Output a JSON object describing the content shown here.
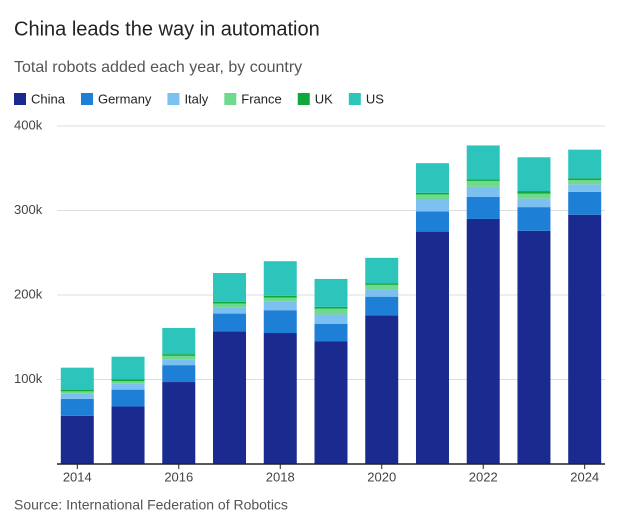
{
  "chart_data": {
    "type": "bar",
    "stacked": true,
    "title": "China leads the way in automation",
    "subtitle": "Total robots added each year, by country",
    "source": "Source: International Federation of Robotics",
    "x": [
      2014,
      2015,
      2016,
      2017,
      2018,
      2019,
      2020,
      2021,
      2022,
      2023,
      2024
    ],
    "xlim": [
      2013.6,
      2024.4
    ],
    "xticks": [
      2014,
      2016,
      2018,
      2020,
      2022,
      2024
    ],
    "ylim": [
      0,
      400000
    ],
    "yticks": [
      {
        "value": 100000,
        "label": "100k"
      },
      {
        "value": 200000,
        "label": "200k"
      },
      {
        "value": 300000,
        "label": "300k"
      },
      {
        "value": 400000,
        "label": "400k"
      }
    ],
    "grid": true,
    "series": [
      {
        "name": "China",
        "color": "#1b2a8f",
        "values": [
          57000,
          68000,
          97000,
          157000,
          155000,
          145000,
          176000,
          275000,
          290000,
          276000,
          295000
        ]
      },
      {
        "name": "Germany",
        "color": "#1d7fd6",
        "values": [
          20000,
          20000,
          20000,
          21000,
          27000,
          21000,
          22000,
          24000,
          26000,
          28000,
          27000
        ]
      },
      {
        "name": "Italy",
        "color": "#7cc0f0",
        "values": [
          6000,
          7000,
          7000,
          7000,
          10000,
          11000,
          9000,
          14000,
          12000,
          10000,
          9000
        ]
      },
      {
        "name": "France",
        "color": "#6fd98d",
        "values": [
          3000,
          3000,
          4000,
          5000,
          5000,
          7000,
          5000,
          6000,
          7000,
          6000,
          5000
        ]
      },
      {
        "name": "UK",
        "color": "#0fa83a",
        "values": [
          2000,
          2000,
          2000,
          2000,
          2000,
          2000,
          2000,
          2000,
          2000,
          3000,
          2000
        ]
      },
      {
        "name": "US",
        "color": "#2cc4bb",
        "values": [
          26000,
          27000,
          31000,
          34000,
          41000,
          33000,
          30000,
          35000,
          40000,
          40000,
          34000
        ]
      }
    ]
  }
}
